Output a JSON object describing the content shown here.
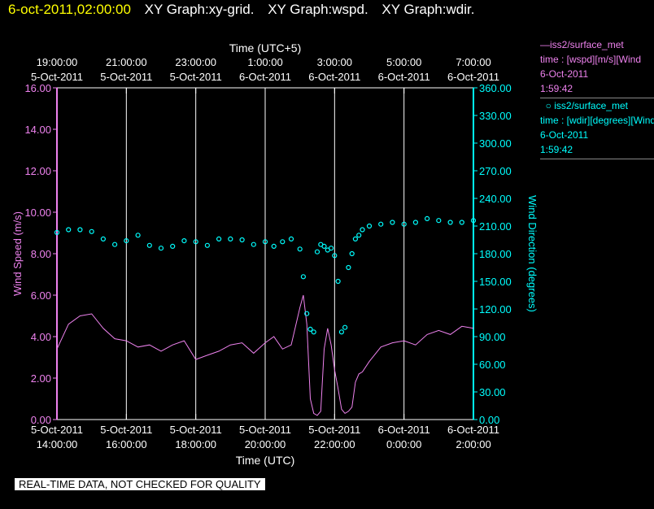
{
  "header": {
    "date_time": "6-oct-2011,02:00:00",
    "graphs": [
      "XY Graph:xy-grid.",
      "XY Graph:wspd.",
      "XY Graph:wdir."
    ]
  },
  "legend": [
    {
      "symbol": "line",
      "color": "#ee82ee",
      "line1": "iss2/surface_met",
      "line2": "time : [wspd][m/s][Wind",
      "line3": "6-Oct-2011",
      "line4": "1:59:42"
    },
    {
      "symbol": "circle",
      "color": "#00ffff",
      "line1": "iss2/surface_met",
      "line2": "time : [wdir][degrees][Wind",
      "line3": "6-Oct-2011",
      "line4": "1:59:42"
    }
  ],
  "disclaimer": "REAL-TIME DATA, NOT CHECKED FOR QUALITY",
  "colors": {
    "wind_speed": "#ee82ee",
    "wind_direction": "#00ffff",
    "axis": "#ffffff",
    "grid": "#ffffff",
    "header_date": "#ffff00"
  },
  "chart_data": {
    "type": "line",
    "xlabel_bottom": "Time (UTC)",
    "xlabel_top": "Time (UTC+5)",
    "ylabel_left": "Wind Speed (m/s)",
    "ylabel_right": "Wind Direction (degrees)",
    "x_range_hours_utc": [
      "5-Oct-2011 14:00:00",
      "6-Oct-2011 02:00:00"
    ],
    "bottom_ticks": [
      {
        "date": "5-Oct-2011",
        "time": "14:00:00"
      },
      {
        "date": "5-Oct-2011",
        "time": "16:00:00"
      },
      {
        "date": "5-Oct-2011",
        "time": "18:00:00"
      },
      {
        "date": "5-Oct-2011",
        "time": "20:00:00"
      },
      {
        "date": "5-Oct-2011",
        "time": "22:00:00"
      },
      {
        "date": "6-Oct-2011",
        "time": "0:00:00"
      },
      {
        "date": "6-Oct-2011",
        "time": "2:00:00"
      }
    ],
    "top_ticks": [
      {
        "date": "5-Oct-2011",
        "time": "19:00:00"
      },
      {
        "date": "5-Oct-2011",
        "time": "21:00:00"
      },
      {
        "date": "5-Oct-2011",
        "time": "23:00:00"
      },
      {
        "date": "6-Oct-2011",
        "time": "1:00:00"
      },
      {
        "date": "6-Oct-2011",
        "time": "3:00:00"
      },
      {
        "date": "6-Oct-2011",
        "time": "5:00:00"
      },
      {
        "date": "6-Oct-2011",
        "time": "7:00:00"
      }
    ],
    "left_axis": {
      "min": 0,
      "max": 16,
      "ticks": [
        "0.00",
        "2.00",
        "4.00",
        "6.00",
        "8.00",
        "10.00",
        "12.00",
        "14.00",
        "16.00"
      ]
    },
    "right_axis": {
      "min": 0,
      "max": 360,
      "ticks": [
        "0.00",
        "30.00",
        "60.00",
        "90.00",
        "120.00",
        "150.00",
        "180.00",
        "210.00",
        "240.00",
        "270.00",
        "300.00",
        "330.00",
        "360.00"
      ]
    },
    "grid": "vertical",
    "series": [
      {
        "name": "iss2/surface_met wspd",
        "axis": "left",
        "style": "line",
        "x": [
          "5-Oct-2011 14:00",
          "5-Oct-2011 14:20",
          "5-Oct-2011 14:40",
          "5-Oct-2011 15:00",
          "5-Oct-2011 15:20",
          "5-Oct-2011 15:40",
          "5-Oct-2011 16:00",
          "5-Oct-2011 16:20",
          "5-Oct-2011 16:40",
          "5-Oct-2011 17:00",
          "5-Oct-2011 17:20",
          "5-Oct-2011 17:40",
          "5-Oct-2011 18:00",
          "5-Oct-2011 18:20",
          "5-Oct-2011 18:40",
          "5-Oct-2011 19:00",
          "5-Oct-2011 19:20",
          "5-Oct-2011 19:40",
          "5-Oct-2011 20:00",
          "5-Oct-2011 20:15",
          "5-Oct-2011 20:30",
          "5-Oct-2011 20:45",
          "5-Oct-2011 21:00",
          "5-Oct-2011 21:06",
          "5-Oct-2011 21:12",
          "5-Oct-2011 21:18",
          "5-Oct-2011 21:24",
          "5-Oct-2011 21:30",
          "5-Oct-2011 21:36",
          "5-Oct-2011 21:42",
          "5-Oct-2011 21:48",
          "5-Oct-2011 21:54",
          "5-Oct-2011 22:00",
          "5-Oct-2011 22:06",
          "5-Oct-2011 22:12",
          "5-Oct-2011 22:18",
          "5-Oct-2011 22:24",
          "5-Oct-2011 22:30",
          "5-Oct-2011 22:36",
          "5-Oct-2011 22:42",
          "5-Oct-2011 22:48",
          "5-Oct-2011 23:00",
          "5-Oct-2011 23:20",
          "5-Oct-2011 23:40",
          "6-Oct-2011 0:00",
          "6-Oct-2011 0:20",
          "6-Oct-2011 0:40",
          "6-Oct-2011 1:00",
          "6-Oct-2011 1:20",
          "6-Oct-2011 1:40",
          "6-Oct-2011 2:00"
        ],
        "values": [
          3.4,
          4.6,
          5.0,
          5.1,
          4.4,
          3.9,
          3.8,
          3.5,
          3.6,
          3.3,
          3.6,
          3.8,
          2.9,
          3.1,
          3.3,
          3.6,
          3.7,
          3.2,
          3.7,
          4.0,
          3.4,
          3.6,
          5.4,
          6.0,
          4.6,
          1.0,
          0.3,
          0.2,
          0.4,
          3.4,
          4.4,
          3.6,
          2.4,
          1.5,
          0.5,
          0.3,
          0.4,
          0.6,
          1.8,
          2.2,
          2.3,
          2.8,
          3.5,
          3.7,
          3.8,
          3.6,
          4.1,
          4.3,
          4.1,
          4.5,
          4.4
        ]
      },
      {
        "name": "iss2/surface_met wdir",
        "axis": "right",
        "style": "markers",
        "x": [
          "5-Oct-2011 14:00",
          "5-Oct-2011 14:20",
          "5-Oct-2011 14:40",
          "5-Oct-2011 15:00",
          "5-Oct-2011 15:20",
          "5-Oct-2011 15:40",
          "5-Oct-2011 16:00",
          "5-Oct-2011 16:20",
          "5-Oct-2011 16:40",
          "5-Oct-2011 17:00",
          "5-Oct-2011 17:20",
          "5-Oct-2011 17:40",
          "5-Oct-2011 18:00",
          "5-Oct-2011 18:20",
          "5-Oct-2011 18:40",
          "5-Oct-2011 19:00",
          "5-Oct-2011 19:20",
          "5-Oct-2011 19:40",
          "5-Oct-2011 20:00",
          "5-Oct-2011 20:15",
          "5-Oct-2011 20:30",
          "5-Oct-2011 20:45",
          "5-Oct-2011 21:00",
          "5-Oct-2011 21:06",
          "5-Oct-2011 21:12",
          "5-Oct-2011 21:18",
          "5-Oct-2011 21:24",
          "5-Oct-2011 21:30",
          "5-Oct-2011 21:36",
          "5-Oct-2011 21:42",
          "5-Oct-2011 21:48",
          "5-Oct-2011 21:54",
          "5-Oct-2011 22:00",
          "5-Oct-2011 22:06",
          "5-Oct-2011 22:12",
          "5-Oct-2011 22:18",
          "5-Oct-2011 22:24",
          "5-Oct-2011 22:30",
          "5-Oct-2011 22:36",
          "5-Oct-2011 22:42",
          "5-Oct-2011 22:48",
          "5-Oct-2011 23:00",
          "5-Oct-2011 23:20",
          "5-Oct-2011 23:40",
          "6-Oct-2011 0:00",
          "6-Oct-2011 0:20",
          "6-Oct-2011 0:40",
          "6-Oct-2011 1:00",
          "6-Oct-2011 1:20",
          "6-Oct-2011 1:40",
          "6-Oct-2011 2:00"
        ],
        "values": [
          203,
          206,
          206,
          204,
          196,
          190,
          194,
          200,
          189,
          186,
          188,
          194,
          193,
          189,
          196,
          196,
          195,
          190,
          193,
          188,
          193,
          196,
          185,
          155,
          115,
          98,
          95,
          182,
          190,
          188,
          184,
          186,
          178,
          150,
          95,
          100,
          165,
          180,
          196,
          200,
          206,
          210,
          212,
          214,
          212,
          214,
          218,
          216,
          214,
          214,
          216
        ]
      }
    ]
  }
}
